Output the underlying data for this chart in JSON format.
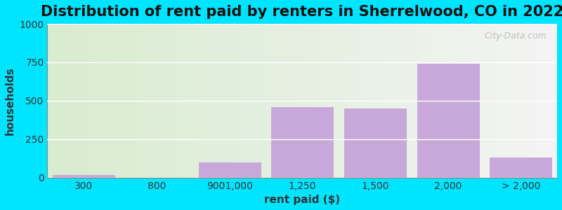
{
  "title": "Distribution of rent paid by renters in Sherrelwood, CO in 2022",
  "xlabel": "rent paid ($)",
  "ylabel": "households",
  "bar_labels": [
    "300",
    "800",
    "9001,000",
    "1,250",
    "1,500",
    "2,000",
    "> 2,000"
  ],
  "bar_values": [
    15,
    0,
    100,
    460,
    450,
    740,
    130
  ],
  "bar_color": "#c8a8d8",
  "bar_edge_color": "#c8a8d8",
  "ylim": [
    0,
    1000
  ],
  "yticks": [
    0,
    250,
    500,
    750,
    1000
  ],
  "background_outer": "#00e5ff",
  "background_inner_left": "#d8ecd0",
  "background_inner_right": "#f0f0f0",
  "title_fontsize": 15,
  "axis_label_fontsize": 11,
  "tick_fontsize": 10
}
